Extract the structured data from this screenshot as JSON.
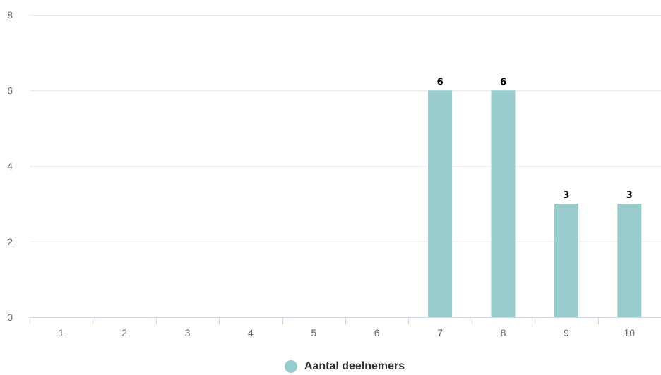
{
  "chart_data": {
    "type": "bar",
    "categories": [
      "1",
      "2",
      "3",
      "4",
      "5",
      "6",
      "7",
      "8",
      "9",
      "10"
    ],
    "series": [
      {
        "name": "Aantal deelnemers",
        "values": [
          0,
          0,
          0,
          0,
          0,
          0,
          6,
          6,
          3,
          3
        ],
        "color": "#99cccc"
      }
    ],
    "data_labels": [
      "",
      "",
      "",
      "",
      "",
      "",
      "6",
      "6",
      "3",
      "3"
    ],
    "ylim": [
      0,
      8
    ],
    "yticks": [
      "0",
      "2",
      "4",
      "6",
      "8"
    ],
    "grid": true,
    "legend_position": "bottom-center",
    "colors": {
      "grid": "#e6e6e6",
      "axis": "#ccd6eb",
      "tick_text": "#666666"
    }
  }
}
